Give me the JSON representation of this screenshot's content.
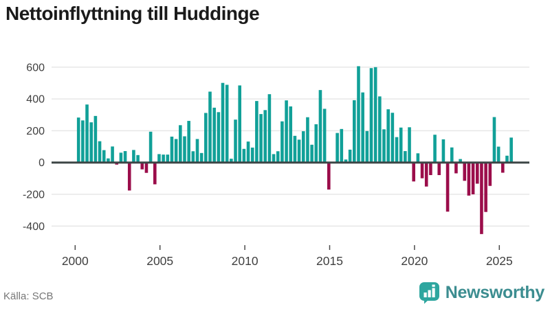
{
  "title": "Nettoinflyttning till Huddinge",
  "source": "Källa: SCB",
  "branding": {
    "name": "Newsworthy",
    "icon": "newsworthy-bar-chart-bubble-icon",
    "icon_color": "#2ea69f",
    "text_color": "#3c8d90"
  },
  "colors": {
    "positive_bar": "#11a098",
    "negative_bar": "#9b0d4a",
    "zero_axis": "#3d4646",
    "gridline": "#e7e7e7",
    "tick": "#4a4a4a",
    "axis_text": "#404040",
    "background": "#ffffff"
  },
  "chart_data": {
    "type": "bar",
    "title": "Nettoinflyttning till Huddinge",
    "frequency": "quarterly",
    "x_start": "2000Q1",
    "x_end": "2025Q3",
    "xlabel": "",
    "ylabel": "",
    "ylim": [
      -500,
      660
    ],
    "yticks": [
      "600",
      "400",
      "200",
      "0",
      "-200",
      "-400"
    ],
    "ytick_values": [
      600,
      400,
      200,
      0,
      -200,
      -400
    ],
    "xticks": [
      "2000",
      "2005",
      "2010",
      "2015",
      "2020",
      "2025"
    ],
    "xtick_values": [
      2000,
      2005,
      2010,
      2015,
      2020,
      2025
    ],
    "grid": "horizontal",
    "legend": "none",
    "series": [
      {
        "name": "Nettoinflyttning",
        "values": [
          283,
          265,
          365,
          253,
          293,
          134,
          78,
          26,
          101,
          -13,
          62,
          72,
          -176,
          79,
          47,
          -43,
          -65,
          194,
          -137,
          53,
          50,
          50,
          163,
          148,
          235,
          165,
          262,
          71,
          148,
          60,
          312,
          446,
          345,
          317,
          501,
          489,
          24,
          270,
          485,
          86,
          132,
          94,
          387,
          305,
          330,
          430,
          53,
          71,
          259,
          391,
          353,
          168,
          144,
          197,
          285,
          112,
          241,
          456,
          338,
          -170,
          null,
          186,
          211,
          19,
          81,
          392,
          606,
          441,
          198,
          594,
          600,
          416,
          209,
          335,
          313,
          160,
          220,
          72,
          222,
          -119,
          58,
          -99,
          -151,
          -79,
          175,
          -79,
          146,
          -309,
          95,
          -68,
          22,
          -115,
          -208,
          -200,
          -133,
          -450,
          -311,
          -147,
          286,
          100,
          -64,
          43,
          157
        ]
      }
    ]
  }
}
